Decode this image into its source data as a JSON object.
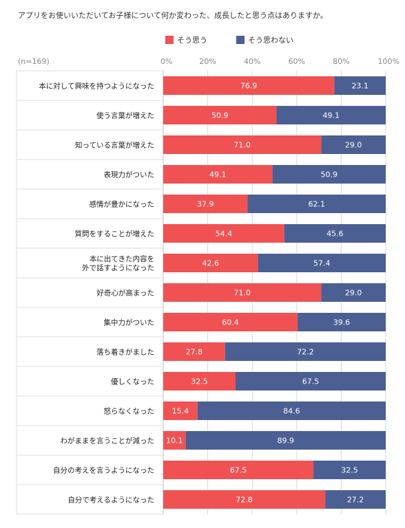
{
  "chart_data": {
    "type": "bar",
    "orientation": "horizontal",
    "stacked": true,
    "title": "アプリをお使いいただいてお子様について何か変わった、成長したと思う点はありますか。",
    "sample_size": "(n=169)",
    "xlim": [
      0,
      100
    ],
    "x_ticks": [
      "0%",
      "20%",
      "40%",
      "60%",
      "80%",
      "100%"
    ],
    "legend_position": "top",
    "categories": [
      [
        "本に対して興味を持つようになった"
      ],
      [
        "使う言葉が増えた"
      ],
      [
        "知っている言葉が増えた"
      ],
      [
        "表現力がついた"
      ],
      [
        "感情が豊かになった"
      ],
      [
        "質問をすることが増えた"
      ],
      [
        "本に出てきた内容を",
        "外で話すようになった"
      ],
      [
        "好奇心が高まった"
      ],
      [
        "集中力がついた"
      ],
      [
        "落ち着きがました"
      ],
      [
        "優しくなった"
      ],
      [
        "怒らなくなった"
      ],
      [
        "わがままを言うことが減った"
      ],
      [
        "自分の考えを言うようになった"
      ],
      [
        "自分で考えるようになった"
      ]
    ],
    "series": [
      {
        "name": "そう思う",
        "color": "#f05253",
        "values": [
          76.9,
          50.9,
          71.0,
          49.1,
          37.9,
          54.4,
          42.6,
          71.0,
          60.4,
          27.8,
          32.5,
          15.4,
          10.1,
          67.5,
          72.8
        ],
        "labels": [
          "76.9",
          "50.9",
          "71.0",
          "49.1",
          "37.9",
          "54.4",
          "42.6",
          "71.0",
          "60.4",
          "27.8",
          "32.5",
          "15.4",
          "10.1",
          "67.5",
          "72.8"
        ]
      },
      {
        "name": "そう思わない",
        "color": "#4b5f93",
        "values": [
          23.1,
          49.1,
          29.0,
          50.9,
          62.1,
          45.6,
          57.4,
          29.0,
          39.6,
          72.2,
          67.5,
          84.6,
          89.9,
          32.5,
          27.2
        ],
        "labels": [
          "23.1",
          "49.1",
          "29.0",
          "50.9",
          "62.1",
          "45.6",
          "57.4",
          "29.0",
          "39.6",
          "72.2",
          "67.5",
          "84.6",
          "89.9",
          "32.5",
          "27.2"
        ]
      }
    ],
    "colors": {
      "grid": "#d9d9d9",
      "row_border": "#dddddd",
      "axis_text": "#888888"
    }
  }
}
